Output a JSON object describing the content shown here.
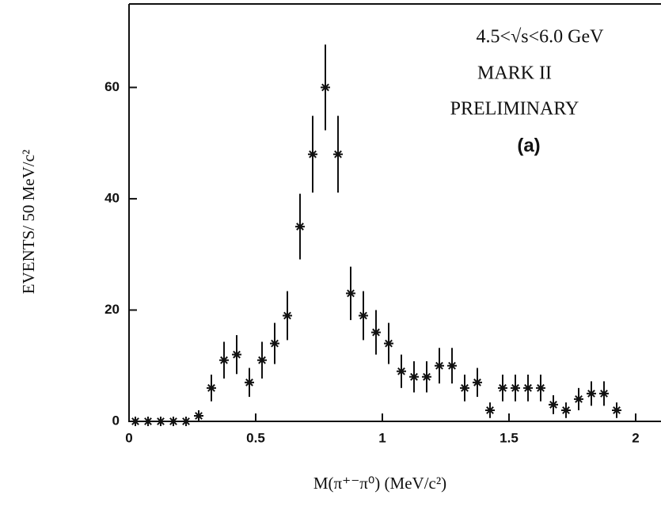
{
  "chart_data": {
    "type": "scatter",
    "annotations": [
      "4.5<√s<6.0 GeV",
      "MARK II",
      "PRELIMINARY",
      "(a)"
    ],
    "xlabel": "M(π⁺⁻π⁰)  (MeV/c²)",
    "ylabel": "EVENTS/ 50 MeV/c²",
    "x": [
      0.025,
      0.075,
      0.125,
      0.175,
      0.225,
      0.275,
      0.325,
      0.375,
      0.425,
      0.475,
      0.525,
      0.575,
      0.625,
      0.675,
      0.725,
      0.775,
      0.825,
      0.875,
      0.925,
      0.975,
      1.025,
      1.075,
      1.125,
      1.175,
      1.225,
      1.275,
      1.325,
      1.375,
      1.425,
      1.475,
      1.525,
      1.575,
      1.625,
      1.675,
      1.725,
      1.775,
      1.825,
      1.875,
      1.925
    ],
    "values": [
      0,
      0,
      0,
      0,
      0,
      1,
      6,
      11,
      12,
      7,
      11,
      14,
      19,
      35,
      48,
      60,
      48,
      23,
      19,
      16,
      14,
      9,
      8,
      8,
      10,
      10,
      6,
      7,
      2,
      6,
      6,
      6,
      6,
      3,
      2,
      4,
      5,
      5,
      2
    ],
    "errors": [
      0,
      0,
      0,
      0,
      0,
      1,
      2.4,
      3.3,
      3.5,
      2.6,
      3.3,
      3.7,
      4.4,
      5.9,
      6.9,
      7.7,
      6.9,
      4.8,
      4.4,
      4,
      3.7,
      3,
      2.8,
      2.8,
      3.2,
      3.2,
      2.4,
      2.6,
      1.4,
      2.4,
      2.4,
      2.4,
      2.4,
      1.7,
      1.4,
      2,
      2.2,
      2.2,
      1.4
    ],
    "xlim": [
      0,
      2.1
    ],
    "xticks": [
      0,
      0.5,
      1,
      1.5,
      2
    ],
    "ylim": [
      0,
      75
    ],
    "yticks": [
      0,
      20,
      40,
      60
    ],
    "color": "#111111"
  }
}
